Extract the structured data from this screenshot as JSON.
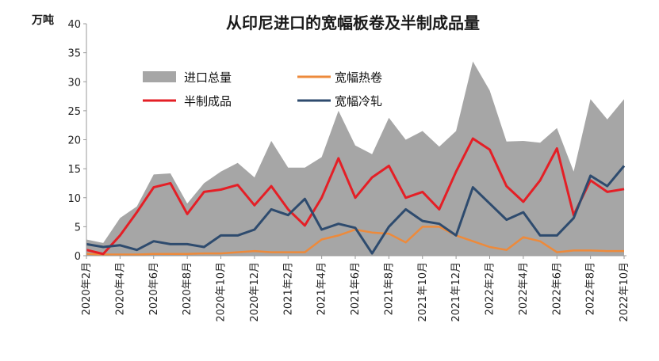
{
  "chart_data": {
    "type": "line",
    "title": "从印尼进口的宽幅板卷及半制成品量",
    "unit_label": "万吨",
    "ylim": [
      0,
      40
    ],
    "yticks": [
      0,
      5,
      10,
      15,
      20,
      25,
      30,
      35,
      40
    ],
    "x": [
      "2020年2月",
      "2020年3月",
      "2020年4月",
      "2020年5月",
      "2020年6月",
      "2020年7月",
      "2020年8月",
      "2020年9月",
      "2020年10月",
      "2020年11月",
      "2020年12月",
      "2021年1月",
      "2021年2月",
      "2021年3月",
      "2021年4月",
      "2021年5月",
      "2021年6月",
      "2021年7月",
      "2021年8月",
      "2021年9月",
      "2021年10月",
      "2021年11月",
      "2021年12月",
      "2022年1月",
      "2022年2月",
      "2022年3月",
      "2022年4月",
      "2022年5月",
      "2022年6月",
      "2022年7月",
      "2022年8月",
      "2022年9月",
      "2022年10月"
    ],
    "x_tick_labels": [
      "2020年2月",
      "2020年4月",
      "2020年6月",
      "2020年8月",
      "2020年10月",
      "2020年12月",
      "2021年2月",
      "2021年4月",
      "2021年6月",
      "2021年8月",
      "2021年10月",
      "2021年12月",
      "2022年2月",
      "2022年4月",
      "2022年6月",
      "2022年8月",
      "2022年10月"
    ],
    "legend_position": "top-left-inside",
    "grid": false,
    "series": [
      {
        "name": "进口总量",
        "kind": "area",
        "color": "#a6a6a6",
        "values": [
          2.8,
          2.2,
          6.5,
          8.5,
          14.0,
          14.2,
          9.0,
          12.5,
          14.5,
          16.0,
          13.5,
          19.8,
          15.2,
          15.2,
          17.0,
          25.0,
          19.0,
          17.5,
          23.8,
          20.0,
          21.5,
          18.8,
          21.5,
          33.5,
          28.5,
          19.7,
          19.8,
          19.5,
          22.0,
          14.5,
          27.0,
          23.5,
          27.0
        ]
      },
      {
        "name": "宽幅热卷",
        "kind": "line",
        "color": "#ed8a3b",
        "values": [
          0.3,
          0.2,
          0.2,
          0.2,
          0.3,
          0.3,
          0.3,
          0.4,
          0.4,
          0.6,
          0.8,
          0.6,
          0.6,
          0.6,
          2.8,
          3.5,
          4.5,
          4.0,
          3.8,
          2.3,
          5.0,
          5.0,
          3.5,
          2.5,
          1.5,
          1.0,
          3.2,
          2.5,
          0.6,
          0.9,
          0.9,
          0.8,
          0.8
        ]
      },
      {
        "name": "半制成品",
        "kind": "line",
        "color": "#e41f26",
        "values": [
          1.0,
          0.3,
          3.5,
          7.5,
          11.8,
          12.5,
          7.2,
          11.0,
          11.4,
          12.2,
          8.7,
          12.0,
          8.0,
          5.2,
          10.0,
          16.8,
          10.0,
          13.5,
          15.5,
          10.0,
          11.0,
          8.0,
          14.5,
          20.2,
          18.3,
          12.0,
          9.3,
          13.0,
          18.5,
          7.0,
          13.0,
          11.0,
          11.5
        ]
      },
      {
        "name": "宽幅冷轧",
        "kind": "line",
        "color": "#2e4b6e",
        "values": [
          2.0,
          1.5,
          1.8,
          1.0,
          2.5,
          2.0,
          2.0,
          1.5,
          3.5,
          3.5,
          4.5,
          8.0,
          7.0,
          9.8,
          4.5,
          5.5,
          4.8,
          0.4,
          5.0,
          8.0,
          6.0,
          5.5,
          3.5,
          11.8,
          9.0,
          6.2,
          7.5,
          3.5,
          3.5,
          6.5,
          13.8,
          12.0,
          15.5
        ]
      }
    ]
  }
}
